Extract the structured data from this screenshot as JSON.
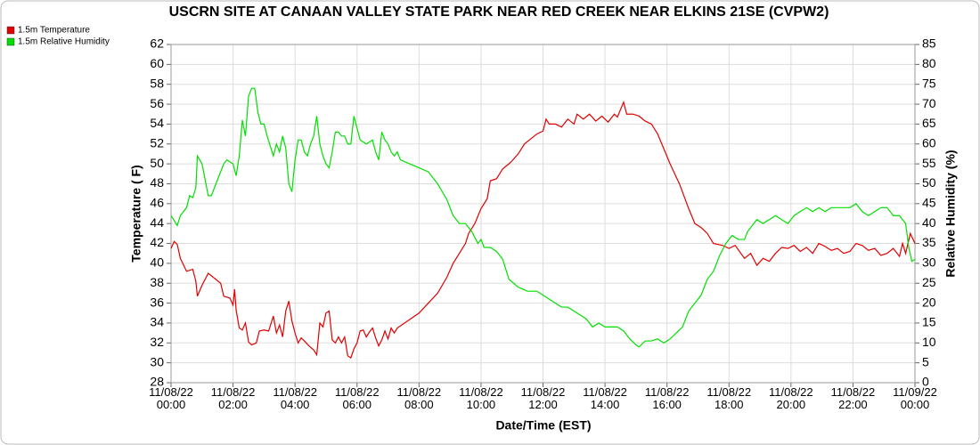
{
  "chart_data": {
    "type": "line",
    "title": "USCRN SITE AT CANAAN VALLEY STATE PARK NEAR RED CREEK NEAR ELKINS 21SE (CVPW2)",
    "x_label": "Date/Time (EST)",
    "y_label": "Temperature ( F)",
    "y2_label": "Relative Humidity (%)",
    "xlim": [
      0,
      24
    ],
    "xticks": [
      {
        "value": 0,
        "label": "11/08/22\n00:00"
      },
      {
        "value": 2,
        "label": "11/08/22\n02:00"
      },
      {
        "value": 4,
        "label": "11/08/22\n04:00"
      },
      {
        "value": 6,
        "label": "11/08/22\n06:00"
      },
      {
        "value": 8,
        "label": "11/08/22\n08:00"
      },
      {
        "value": 10,
        "label": "11/08/22\n10:00"
      },
      {
        "value": 12,
        "label": "11/08/22\n12:00"
      },
      {
        "value": 14,
        "label": "11/08/22\n14:00"
      },
      {
        "value": 16,
        "label": "11/08/22\n16:00"
      },
      {
        "value": 18,
        "label": "11/08/22\n18:00"
      },
      {
        "value": 20,
        "label": "11/08/22\n20:00"
      },
      {
        "value": 22,
        "label": "11/08/22\n22:00"
      },
      {
        "value": 24,
        "label": "11/09/22\n00:00"
      }
    ],
    "ylim": [
      28,
      62
    ],
    "yticks": [
      28,
      30,
      32,
      34,
      36,
      38,
      40,
      42,
      44,
      46,
      48,
      50,
      52,
      54,
      56,
      58,
      60,
      62
    ],
    "y2lim": [
      0,
      85
    ],
    "y2ticks": [
      0,
      5,
      10,
      15,
      20,
      25,
      30,
      35,
      40,
      45,
      50,
      55,
      60,
      65,
      70,
      75,
      80,
      85
    ],
    "grid": true,
    "legend": "top-left",
    "series": [
      {
        "name": "1.5m Temperature",
        "color": "#e00000",
        "x": [
          0,
          0.1,
          0.2,
          0.3,
          0.5,
          0.7,
          0.8,
          0.85,
          1,
          1.2,
          1.4,
          1.6,
          1.7,
          1.9,
          2,
          2.05,
          2.1,
          2.2,
          2.3,
          2.4,
          2.5,
          2.6,
          2.75,
          2.85,
          3,
          3.15,
          3.3,
          3.4,
          3.5,
          3.6,
          3.7,
          3.8,
          3.9,
          4,
          4.1,
          4.2,
          4.3,
          4.45,
          4.6,
          4.7,
          4.8,
          4.9,
          5,
          5.1,
          5.2,
          5.3,
          5.4,
          5.5,
          5.6,
          5.7,
          5.8,
          5.9,
          6,
          6.1,
          6.2,
          6.3,
          6.4,
          6.5,
          6.6,
          6.7,
          6.8,
          6.9,
          7,
          7.1,
          7.2,
          7.3,
          8,
          8.3,
          8.6,
          8.9,
          9.1,
          9.3,
          9.5,
          9.6,
          9.8,
          10,
          10.2,
          10.3,
          10.5,
          10.7,
          10.9,
          11,
          11.2,
          11.4,
          11.6,
          11.8,
          12,
          12.1,
          12.2,
          12.4,
          12.6,
          12.8,
          13,
          13.1,
          13.3,
          13.5,
          13.7,
          13.9,
          14.1,
          14.3,
          14.4,
          14.6,
          14.7,
          14.9,
          15.1,
          15.3,
          15.5,
          15.7,
          15.9,
          16.1,
          16.4,
          16.7,
          16.9,
          17.1,
          17.3,
          17.5,
          17.8,
          18,
          18.2,
          18.5,
          18.7,
          18.9,
          19.1,
          19.3,
          19.5,
          19.7,
          19.9,
          20.1,
          20.3,
          20.5,
          20.7,
          20.9,
          21.1,
          21.3,
          21.5,
          21.7,
          21.9,
          22.1,
          22.3,
          22.5,
          22.7,
          22.9,
          23.1,
          23.3,
          23.5,
          23.6,
          23.7,
          23.85,
          24
        ],
        "values": [
          41.5,
          42.2,
          41.9,
          40.5,
          39.2,
          39.4,
          38.2,
          36.7,
          37.8,
          39,
          38.5,
          38,
          36.7,
          36.5,
          35.8,
          37.4,
          35.3,
          33.5,
          33.3,
          34,
          32.1,
          31.8,
          32,
          33.2,
          33.3,
          33.2,
          34.7,
          33,
          33.8,
          32.6,
          35.2,
          36.2,
          34.2,
          33,
          32,
          32.5,
          32.2,
          31.7,
          31.3,
          30.8,
          34,
          33.6,
          35,
          35.2,
          32.3,
          32,
          32.6,
          32,
          32.6,
          30.7,
          30.5,
          31.4,
          32,
          33.2,
          33.3,
          32.6,
          33.1,
          33.5,
          32.5,
          31.7,
          32.3,
          33.2,
          32.4,
          33.5,
          33,
          33.5,
          35,
          36,
          37,
          38.6,
          40,
          41,
          42,
          43,
          44,
          45.5,
          46.5,
          48.3,
          48.5,
          49.5,
          50,
          50.3,
          51,
          52,
          52.5,
          53,
          53.3,
          54.5,
          54,
          54,
          53.7,
          54.5,
          54,
          55,
          54.5,
          55,
          54.3,
          54.8,
          54.2,
          55,
          54.7,
          56.2,
          55,
          55,
          54.8,
          54.3,
          54,
          53,
          51.5,
          50,
          48,
          45.5,
          44,
          43.6,
          43,
          42,
          41.8,
          41.5,
          41.8,
          40.5,
          41,
          39.8,
          40.5,
          40.2,
          41,
          41.6,
          41.5,
          41.8,
          41.2,
          41.6,
          41,
          42,
          41.7,
          41.3,
          41.5,
          41,
          41.2,
          42,
          41.8,
          41.3,
          41.5,
          40.8,
          41,
          41.5,
          40.7,
          42,
          41,
          43,
          42
        ]
      },
      {
        "name": "1.5m Relative Humidity",
        "color": "#00e000",
        "axis": "y2",
        "x": [
          0,
          0.2,
          0.3,
          0.5,
          0.6,
          0.7,
          0.8,
          0.85,
          1,
          1.2,
          1.3,
          1.5,
          1.7,
          1.8,
          2,
          2.1,
          2.2,
          2.3,
          2.4,
          2.5,
          2.6,
          2.7,
          2.8,
          2.9,
          3,
          3.1,
          3.3,
          3.4,
          3.5,
          3.6,
          3.7,
          3.8,
          3.9,
          4,
          4.1,
          4.2,
          4.3,
          4.4,
          4.5,
          4.6,
          4.7,
          4.8,
          4.9,
          5,
          5.1,
          5.2,
          5.3,
          5.4,
          5.5,
          5.6,
          5.7,
          5.8,
          5.9,
          6,
          6.1,
          6.3,
          6.5,
          6.6,
          6.7,
          6.8,
          6.9,
          7,
          7.1,
          7.2,
          7.3,
          7.4,
          8,
          8.3,
          8.6,
          8.9,
          9.1,
          9.3,
          9.5,
          9.7,
          9.9,
          10,
          10.1,
          10.3,
          10.5,
          10.7,
          10.9,
          11.2,
          11.5,
          11.8,
          12,
          12.2,
          12.4,
          12.6,
          12.8,
          13,
          13.2,
          13.4,
          13.6,
          13.8,
          14,
          14.2,
          14.4,
          14.6,
          14.8,
          15,
          15.1,
          15.3,
          15.5,
          15.7,
          15.9,
          16.1,
          16.3,
          16.5,
          16.7,
          16.9,
          17.1,
          17.3,
          17.5,
          17.7,
          17.9,
          18.1,
          18.3,
          18.5,
          18.6,
          18.8,
          18.9,
          19.1,
          19.3,
          19.5,
          19.7,
          19.9,
          20.1,
          20.3,
          20.5,
          20.7,
          20.9,
          21.1,
          21.3,
          21.5,
          21.7,
          21.9,
          22.1,
          22.3,
          22.5,
          22.7,
          22.9,
          23.1,
          23.3,
          23.5,
          23.7,
          23.8,
          23.9,
          24
        ],
        "values": [
          42,
          39.5,
          42,
          44,
          47,
          46.5,
          49,
          57,
          55,
          47,
          47,
          51,
          55,
          56,
          55,
          52,
          57,
          66,
          62,
          72,
          74,
          74,
          68,
          65,
          65,
          62,
          57,
          60,
          58,
          62,
          59,
          50,
          48,
          56,
          61,
          61,
          58,
          57,
          60,
          62,
          67,
          60,
          57,
          55,
          54,
          58,
          63,
          63,
          62,
          62,
          60,
          60,
          67,
          64,
          61,
          60,
          61,
          58,
          56,
          63,
          61,
          60,
          58,
          57,
          58,
          56,
          54,
          53,
          50,
          46,
          42,
          40,
          40,
          38,
          35,
          36,
          34,
          34,
          33,
          31,
          26,
          24,
          23,
          23,
          22,
          21,
          20,
          19,
          19,
          18,
          17,
          16,
          14,
          15,
          14,
          14,
          14,
          13,
          11,
          9.5,
          9,
          10.5,
          10.5,
          11,
          10,
          11,
          12.5,
          14,
          18,
          20,
          22,
          26,
          28,
          32,
          35,
          37,
          36,
          36,
          38,
          40,
          41,
          40,
          41,
          42,
          41,
          40,
          42,
          43,
          44,
          43,
          44,
          43,
          44,
          44,
          44,
          44,
          45,
          43,
          42,
          43,
          44,
          44,
          42,
          42,
          40,
          34,
          30.5,
          31
        ]
      }
    ]
  }
}
